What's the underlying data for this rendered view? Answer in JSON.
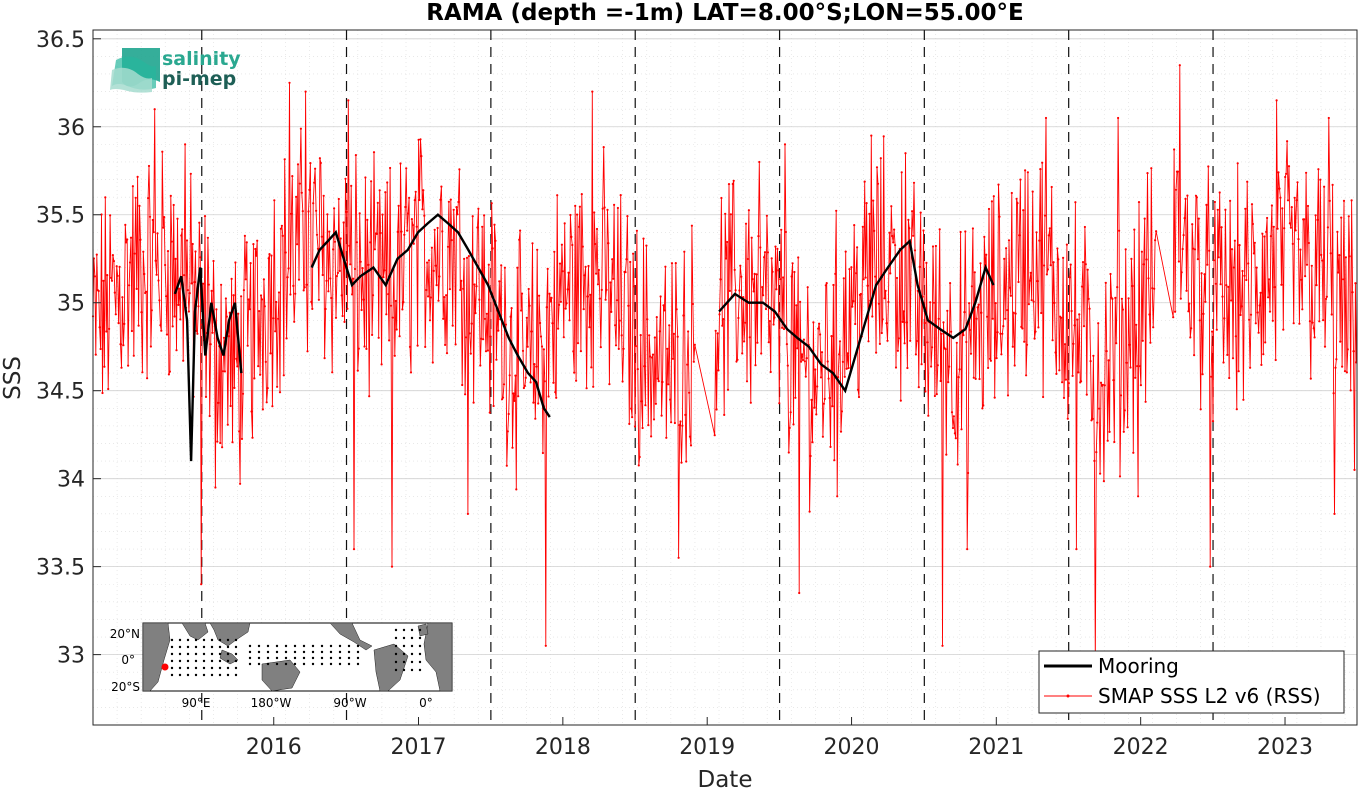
{
  "chart_data": {
    "type": "line",
    "title": "RAMA (depth =-1m) LAT=8.00°S;LON=55.00°E",
    "xlabel": "Date",
    "ylabel": "SSS",
    "xlim": [
      "2015-04-01",
      "2023-12-31"
    ],
    "ylim": [
      32.6,
      36.55
    ],
    "x_ticks": [
      "2016",
      "2017",
      "2018",
      "2019",
      "2020",
      "2021",
      "2022",
      "2023"
    ],
    "y_ticks": [
      "33",
      "33.5",
      "34",
      "34.5",
      "35",
      "35.5",
      "36",
      "36.5"
    ],
    "year_lines": [
      "2016-01-01",
      "2017-01-01",
      "2018-01-01",
      "2019-01-01",
      "2020-01-01",
      "2021-01-01",
      "2022-01-01",
      "2023-01-01"
    ],
    "grid": true,
    "legend_position": "bottom-right",
    "series": [
      {
        "name": "Mooring",
        "color": "#000000",
        "style": "thick-line",
        "points": [
          [
            "2015-10-25",
            35.05
          ],
          [
            "2015-11-10",
            35.15
          ],
          [
            "2015-11-25",
            34.9
          ],
          [
            "2015-12-05",
            34.1
          ],
          [
            "2015-12-15",
            34.95
          ],
          [
            "2015-12-28",
            35.2
          ],
          [
            "2016-01-10",
            34.7
          ],
          [
            "2016-01-25",
            35.0
          ],
          [
            "2016-02-10",
            34.8
          ],
          [
            "2016-02-25",
            34.7
          ],
          [
            "2016-03-10",
            34.9
          ],
          [
            "2016-03-25",
            35.0
          ],
          [
            "2016-04-10",
            34.6
          ],
          [
            "2016-10-05",
            35.2
          ],
          [
            "2016-10-25",
            35.3
          ],
          [
            "2016-11-15",
            35.35
          ],
          [
            "2016-12-05",
            35.4
          ],
          [
            "2016-12-25",
            35.25
          ],
          [
            "2017-01-15",
            35.1
          ],
          [
            "2017-02-05",
            35.15
          ],
          [
            "2017-03-10",
            35.2
          ],
          [
            "2017-04-10",
            35.1
          ],
          [
            "2017-05-10",
            35.25
          ],
          [
            "2017-06-05",
            35.3
          ],
          [
            "2017-07-01",
            35.4
          ],
          [
            "2017-07-25",
            35.45
          ],
          [
            "2017-08-20",
            35.5
          ],
          [
            "2017-09-15",
            35.45
          ],
          [
            "2017-10-10",
            35.4
          ],
          [
            "2017-11-05",
            35.3
          ],
          [
            "2017-11-30",
            35.2
          ],
          [
            "2017-12-25",
            35.1
          ],
          [
            "2018-01-20",
            34.95
          ],
          [
            "2018-02-15",
            34.8
          ],
          [
            "2018-03-10",
            34.7
          ],
          [
            "2018-04-05",
            34.6
          ],
          [
            "2018-04-25",
            34.55
          ],
          [
            "2018-05-15",
            34.4
          ],
          [
            "2018-05-30",
            34.35
          ],
          [
            "2019-08-01",
            34.95
          ],
          [
            "2019-09-10",
            35.05
          ],
          [
            "2019-10-15",
            35.0
          ],
          [
            "2019-11-20",
            35.0
          ],
          [
            "2019-12-20",
            34.95
          ],
          [
            "2020-01-20",
            34.85
          ],
          [
            "2020-02-15",
            34.8
          ],
          [
            "2020-03-15",
            34.75
          ],
          [
            "2020-04-15",
            34.65
          ],
          [
            "2020-05-15",
            34.6
          ],
          [
            "2020-06-15",
            34.5
          ],
          [
            "2020-09-01",
            35.1
          ],
          [
            "2020-10-01",
            35.2
          ],
          [
            "2020-11-01",
            35.3
          ],
          [
            "2020-11-25",
            35.35
          ],
          [
            "2020-12-15",
            35.1
          ],
          [
            "2021-01-10",
            34.9
          ],
          [
            "2021-02-10",
            34.85
          ],
          [
            "2021-03-15",
            34.8
          ],
          [
            "2021-04-15",
            34.85
          ],
          [
            "2021-05-10",
            35.0
          ],
          [
            "2021-06-05",
            35.2
          ],
          [
            "2021-06-25",
            35.1
          ]
        ]
      },
      {
        "name": "SMAP SSS L2 v6 (RSS)",
        "color": "#ff0000",
        "style": "thin-line-dots",
        "seasonal_mean": [
          [
            "2015-04-01",
            34.85
          ],
          [
            "2015-07-01",
            35.15
          ],
          [
            "2015-10-01",
            35.25
          ],
          [
            "2016-01-01",
            34.95
          ],
          [
            "2016-04-01",
            34.6
          ],
          [
            "2016-07-01",
            35.15
          ],
          [
            "2016-10-01",
            35.35
          ],
          [
            "2017-01-01",
            35.2
          ],
          [
            "2017-04-01",
            35.05
          ],
          [
            "2017-07-01",
            35.3
          ],
          [
            "2017-10-01",
            35.35
          ],
          [
            "2018-01-01",
            34.95
          ],
          [
            "2018-04-01",
            34.6
          ],
          [
            "2018-07-01",
            35.05
          ],
          [
            "2018-10-01",
            35.2
          ],
          [
            "2019-01-01",
            34.8
          ],
          [
            "2019-04-01",
            34.6
          ],
          [
            "2019-07-01",
            34.9
          ],
          [
            "2019-10-01",
            35.1
          ],
          [
            "2020-01-01",
            34.85
          ],
          [
            "2020-04-01",
            34.55
          ],
          [
            "2020-07-01",
            35.0
          ],
          [
            "2020-10-01",
            35.25
          ],
          [
            "2021-01-01",
            34.9
          ],
          [
            "2021-04-01",
            34.7
          ],
          [
            "2021-07-01",
            35.0
          ],
          [
            "2021-10-01",
            35.3
          ],
          [
            "2022-01-01",
            34.95
          ],
          [
            "2022-04-01",
            34.55
          ],
          [
            "2022-07-01",
            35.0
          ],
          [
            "2022-10-01",
            35.35
          ],
          [
            "2023-01-01",
            35.0
          ],
          [
            "2023-04-01",
            35.05
          ],
          [
            "2023-07-01",
            35.25
          ],
          [
            "2023-10-01",
            35.15
          ],
          [
            "2023-12-31",
            34.8
          ]
        ],
        "extremes": [
          [
            "2015-09-05",
            36.1
          ],
          [
            "2015-11-20",
            35.9
          ],
          [
            "2015-12-30",
            33.4
          ],
          [
            "2016-02-05",
            33.95
          ],
          [
            "2016-08-10",
            36.25
          ],
          [
            "2016-09-20",
            36.2
          ],
          [
            "2017-01-05",
            36.15
          ],
          [
            "2017-01-20",
            33.6
          ],
          [
            "2017-04-25",
            33.5
          ],
          [
            "2017-11-05",
            33.8
          ],
          [
            "2018-05-20",
            33.05
          ],
          [
            "2018-09-15",
            36.2
          ],
          [
            "2019-04-20",
            33.55
          ],
          [
            "2019-11-10",
            35.8
          ],
          [
            "2020-01-15",
            35.9
          ],
          [
            "2020-02-20",
            33.35
          ],
          [
            "2020-05-25",
            33.9
          ],
          [
            "2020-08-20",
            35.95
          ],
          [
            "2020-11-15",
            35.85
          ],
          [
            "2021-02-15",
            33.05
          ],
          [
            "2021-04-20",
            33.6
          ],
          [
            "2021-11-05",
            36.05
          ],
          [
            "2022-01-20",
            33.6
          ],
          [
            "2022-03-10",
            32.95
          ],
          [
            "2022-05-05",
            36.05
          ],
          [
            "2022-06-25",
            33.9
          ],
          [
            "2022-10-10",
            36.35
          ],
          [
            "2022-12-25",
            33.5
          ],
          [
            "2023-06-10",
            36.15
          ],
          [
            "2023-10-20",
            36.05
          ],
          [
            "2023-11-05",
            33.8
          ],
          [
            "2023-12-25",
            34.05
          ]
        ]
      }
    ]
  },
  "logo": {
    "line1": "salinity",
    "line2": "pi-mep"
  },
  "inset_map": {
    "y_labels": [
      "20°N",
      "0°",
      "20°S"
    ],
    "x_labels": [
      "90°E",
      "180°W",
      "90°W",
      "0°"
    ]
  }
}
